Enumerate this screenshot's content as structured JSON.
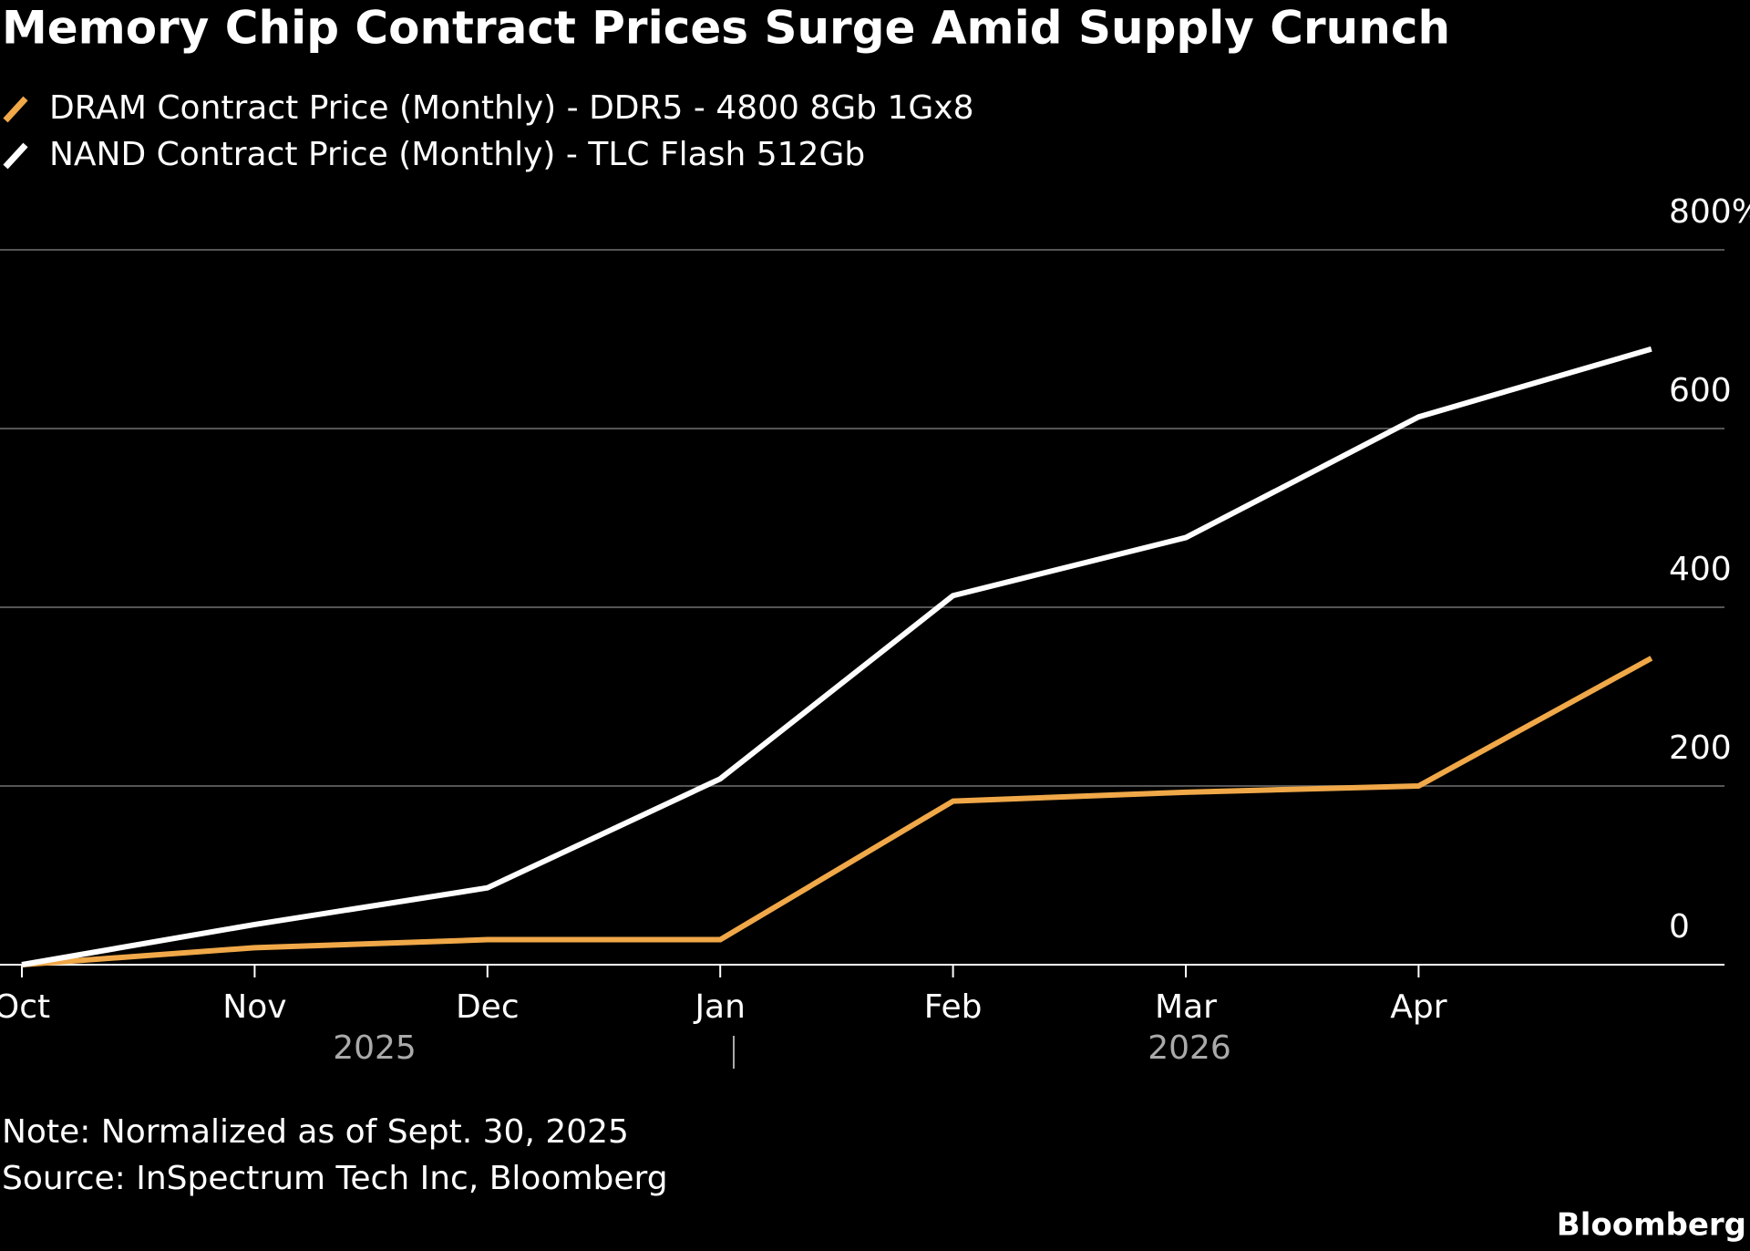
{
  "chart_data": {
    "type": "line",
    "title": "Memory Chip Contract Prices Surge Amid Supply Crunch",
    "categories": [
      "Oct",
      "Nov",
      "Dec",
      "Jan",
      "Feb",
      "Mar",
      "Apr",
      null
    ],
    "year_labels": [
      "2025",
      "2026"
    ],
    "series": [
      {
        "name": "DRAM Contract Price (Monthly) - DDR5 - 4800 8Gb 1Gx8",
        "color": "#f0a848",
        "values": [
          0,
          19,
          28,
          28,
          183,
          193,
          200,
          343
        ]
      },
      {
        "name": "NAND Contract Price (Monthly) - TLC Flash 512Gb",
        "color": "#ffffff",
        "values": [
          0,
          45,
          86,
          208,
          413,
          478,
          613,
          689
        ]
      }
    ],
    "ylim": [
      0,
      800
    ],
    "yticks": [
      0,
      200,
      400,
      600,
      {
        "value": 800,
        "label": "800%"
      }
    ],
    "grid": true,
    "note": "Note: Normalized as of Sept. 30, 2025",
    "source": "Source: InSpectrum Tech Inc, Bloomberg",
    "credit": "Bloomberg"
  }
}
